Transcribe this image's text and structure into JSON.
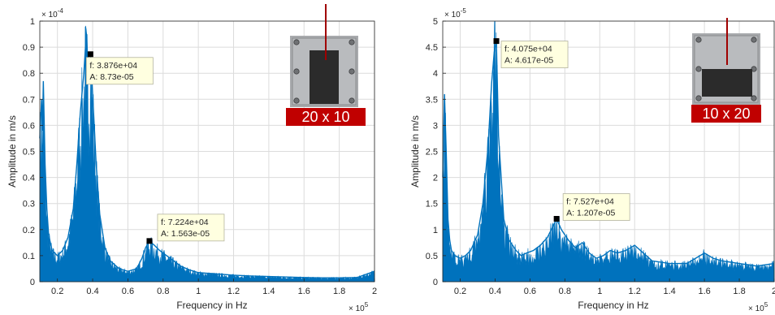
{
  "colors": {
    "series": "#0072BD",
    "grid": "#dcdcdc",
    "axis": "#262626",
    "datatip_bg": "#ffffe0",
    "datatip_border": "#b4b4a0",
    "marker": "#000000",
    "label_banner": "#c00000",
    "label_text": "#ffffff",
    "pointer_line": "#a00000",
    "photo_plate": "#a8aaad",
    "photo_block": "#2b2b2b"
  },
  "chart_data": [
    {
      "type": "line",
      "xlabel": "Frequency in Hz",
      "ylabel": "Amplitude in m/s",
      "x_exponent_label": "× 10",
      "x_exponent_power": "5",
      "y_exponent_label": "× 10",
      "y_exponent_power": "-4",
      "xlim": [
        0.1,
        2.0
      ],
      "ylim": [
        0,
        1.0
      ],
      "x_ticks": [
        0.2,
        0.4,
        0.6,
        0.8,
        1,
        1.2,
        1.4,
        1.6,
        1.8,
        2
      ],
      "x_tick_labels": [
        "0.2",
        "0.4",
        "0.6",
        "0.8",
        "1",
        "1.2",
        "1.4",
        "1.6",
        "1.8",
        "2"
      ],
      "y_ticks": [
        0,
        0.1,
        0.2,
        0.3,
        0.4,
        0.5,
        0.6,
        0.7,
        0.8,
        0.9,
        1
      ],
      "y_tick_labels": [
        "0",
        "0.1",
        "0.2",
        "0.3",
        "0.4",
        "0.5",
        "0.6",
        "0.7",
        "0.8",
        "0.9",
        "1"
      ],
      "grid": true,
      "series": [
        {
          "x": [
            0.1,
            0.11,
            0.115,
            0.12,
            0.13,
            0.14,
            0.15,
            0.17,
            0.2,
            0.23,
            0.26,
            0.29,
            0.31,
            0.33,
            0.35,
            0.36,
            0.37,
            0.3876,
            0.4,
            0.42,
            0.44,
            0.47,
            0.5,
            0.55,
            0.6,
            0.65,
            0.68,
            0.7,
            0.7224,
            0.75,
            0.78,
            0.82,
            0.86,
            0.9,
            0.95,
            1.0,
            1.1,
            1.2,
            1.3,
            1.4,
            1.5,
            1.6,
            1.7,
            1.8,
            1.9,
            2.0
          ],
          "values": [
            0.55,
            0.7,
            0.58,
            0.77,
            0.45,
            0.28,
            0.18,
            0.12,
            0.1,
            0.12,
            0.17,
            0.28,
            0.45,
            0.65,
            0.8,
            0.91,
            0.86,
            0.873,
            0.72,
            0.45,
            0.26,
            0.13,
            0.08,
            0.05,
            0.04,
            0.05,
            0.09,
            0.13,
            0.156,
            0.14,
            0.12,
            0.1,
            0.08,
            0.06,
            0.045,
            0.035,
            0.03,
            0.025,
            0.022,
            0.02,
            0.018,
            0.016,
            0.015,
            0.015,
            0.016,
            0.04
          ]
        }
      ],
      "datatips": [
        {
          "x": 0.3876,
          "y": 0.873,
          "f_label": "f: 3.876e+04",
          "a_label": "A: 8.73e-05"
        },
        {
          "x": 0.7224,
          "y": 0.1563,
          "f_label": "f: 7.224e+04",
          "a_label": "A: 1.563e-05"
        }
      ],
      "inset_label": "20 x 10"
    },
    {
      "type": "line",
      "xlabel": "Frequency in Hz",
      "ylabel": "Amplitude in m/s",
      "x_exponent_label": "× 10",
      "x_exponent_power": "5",
      "y_exponent_label": "× 10",
      "y_exponent_power": "-5",
      "xlim": [
        0.1,
        2.0
      ],
      "ylim": [
        0,
        5.0
      ],
      "x_ticks": [
        0.2,
        0.4,
        0.6,
        0.8,
        1,
        1.2,
        1.4,
        1.6,
        1.8,
        2
      ],
      "x_tick_labels": [
        "0.2",
        "0.4",
        "0.6",
        "0.8",
        "1",
        "1.2",
        "1.4",
        "1.6",
        "1.8",
        "2"
      ],
      "y_ticks": [
        0,
        0.5,
        1,
        1.5,
        2,
        2.5,
        3,
        3.5,
        4,
        4.5,
        5
      ],
      "y_tick_labels": [
        "0",
        "0.5",
        "1",
        "1.5",
        "2",
        "2.5",
        "3",
        "3.5",
        "4",
        "4.5",
        "5"
      ],
      "grid": true,
      "series": [
        {
          "x": [
            0.1,
            0.11,
            0.12,
            0.13,
            0.14,
            0.15,
            0.17,
            0.2,
            0.23,
            0.26,
            0.3,
            0.33,
            0.36,
            0.38,
            0.395,
            0.4075,
            0.42,
            0.45,
            0.48,
            0.52,
            0.55,
            0.58,
            0.62,
            0.66,
            0.7,
            0.73,
            0.7527,
            0.78,
            0.82,
            0.86,
            0.9,
            0.94,
            0.98,
            1.02,
            1.06,
            1.1,
            1.15,
            1.2,
            1.25,
            1.3,
            1.4,
            1.5,
            1.6,
            1.65,
            1.7,
            1.8,
            1.9,
            2.0
          ],
          "values": [
            2.0,
            3.6,
            2.5,
            1.2,
            0.8,
            0.6,
            0.5,
            0.45,
            0.5,
            0.6,
            0.9,
            1.5,
            2.6,
            3.8,
            4.4,
            4.617,
            2.8,
            1.2,
            0.8,
            0.6,
            0.5,
            0.55,
            0.6,
            0.7,
            0.85,
            1.05,
            1.207,
            1.0,
            0.8,
            0.65,
            0.75,
            0.55,
            0.45,
            0.5,
            0.6,
            0.55,
            0.6,
            0.7,
            0.55,
            0.4,
            0.35,
            0.35,
            0.55,
            0.45,
            0.4,
            0.35,
            0.3,
            0.35
          ]
        }
      ],
      "datatips": [
        {
          "x": 0.4075,
          "y": 4.617,
          "f_label": "f: 4.075e+04",
          "a_label": "A: 4.617e-05"
        },
        {
          "x": 0.7527,
          "y": 1.207,
          "f_label": "f: 7.527e+04",
          "a_label": "A: 1.207e-05"
        }
      ],
      "inset_label": "10 x 20"
    }
  ]
}
